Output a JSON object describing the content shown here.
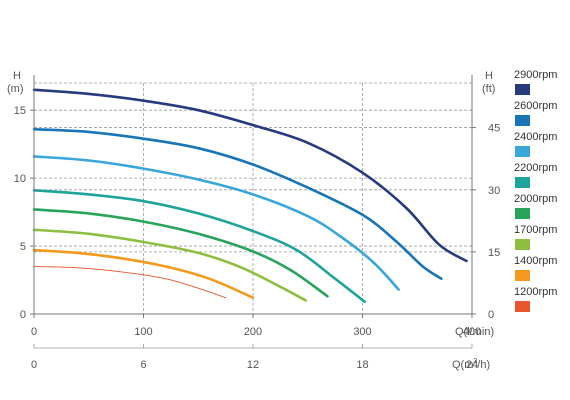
{
  "chart_data": {
    "type": "line",
    "x_primary": {
      "label": "Q(l/min)",
      "range": [
        0,
        400
      ],
      "ticks": [
        "0",
        "100",
        "200",
        "300",
        "400"
      ]
    },
    "x_secondary": {
      "label_prefix": "Q(m",
      "label_sup": "3",
      "label_suffix": "/h)",
      "range": [
        0,
        24
      ],
      "ticks": [
        "0",
        "6",
        "12",
        "18",
        "24"
      ]
    },
    "y_left": {
      "label_top": "H",
      "label_unit": "(m)",
      "range": [
        0,
        17
      ],
      "ticks": [
        "0",
        "5",
        "10",
        "15"
      ]
    },
    "y_right": {
      "label_top": "H",
      "label_unit": "(ft)",
      "ticks": [
        "0",
        "15",
        "30",
        "45"
      ],
      "tick_values_m": [
        0,
        4.57,
        9.14,
        13.72
      ]
    },
    "grid": true,
    "legend_position": "right",
    "series": [
      {
        "name": "2900rpm",
        "color": "#263a7e",
        "points": [
          [
            0,
            16.5
          ],
          [
            50,
            16.2
          ],
          [
            100,
            15.7
          ],
          [
            150,
            15.0
          ],
          [
            200,
            13.9
          ],
          [
            250,
            12.6
          ],
          [
            300,
            10.4
          ],
          [
            340,
            7.8
          ],
          [
            370,
            5.1
          ],
          [
            395,
            3.9
          ]
        ]
      },
      {
        "name": "2600rpm",
        "color": "#1775b8",
        "points": [
          [
            0,
            13.6
          ],
          [
            50,
            13.4
          ],
          [
            100,
            12.9
          ],
          [
            150,
            12.2
          ],
          [
            200,
            11.0
          ],
          [
            250,
            9.3
          ],
          [
            300,
            7.3
          ],
          [
            330,
            5.4
          ],
          [
            355,
            3.5
          ],
          [
            372,
            2.6
          ]
        ]
      },
      {
        "name": "2400rpm",
        "color": "#3aa6da",
        "points": [
          [
            0,
            11.6
          ],
          [
            50,
            11.3
          ],
          [
            100,
            10.7
          ],
          [
            150,
            9.9
          ],
          [
            200,
            8.8
          ],
          [
            250,
            7.2
          ],
          [
            280,
            5.7
          ],
          [
            310,
            3.8
          ],
          [
            333,
            1.8
          ]
        ]
      },
      {
        "name": "2200rpm",
        "color": "#1fa39c",
        "points": [
          [
            0,
            9.1
          ],
          [
            50,
            8.8
          ],
          [
            100,
            8.3
          ],
          [
            150,
            7.4
          ],
          [
            200,
            6.1
          ],
          [
            240,
            4.7
          ],
          [
            275,
            2.6
          ],
          [
            302,
            0.9
          ]
        ]
      },
      {
        "name": "2000rpm",
        "color": "#27a35a",
        "points": [
          [
            0,
            7.7
          ],
          [
            50,
            7.4
          ],
          [
            100,
            6.8
          ],
          [
            150,
            5.9
          ],
          [
            200,
            4.6
          ],
          [
            235,
            3.2
          ],
          [
            268,
            1.3
          ]
        ]
      },
      {
        "name": "1700rpm",
        "color": "#8cbf3f",
        "points": [
          [
            0,
            6.2
          ],
          [
            50,
            5.9
          ],
          [
            100,
            5.3
          ],
          [
            150,
            4.5
          ],
          [
            190,
            3.4
          ],
          [
            225,
            2.0
          ],
          [
            248,
            1.0
          ]
        ]
      },
      {
        "name": "1400rpm",
        "color": "#f39a1e",
        "points": [
          [
            0,
            4.7
          ],
          [
            40,
            4.5
          ],
          [
            80,
            4.1
          ],
          [
            120,
            3.5
          ],
          [
            160,
            2.6
          ],
          [
            200,
            1.2
          ]
        ]
      },
      {
        "name": "1200rpm",
        "color": "#e8552a",
        "points": [
          [
            0,
            3.5
          ],
          [
            40,
            3.4
          ],
          [
            80,
            3.1
          ],
          [
            120,
            2.6
          ],
          [
            150,
            1.9
          ],
          [
            175,
            1.2
          ]
        ]
      }
    ]
  }
}
